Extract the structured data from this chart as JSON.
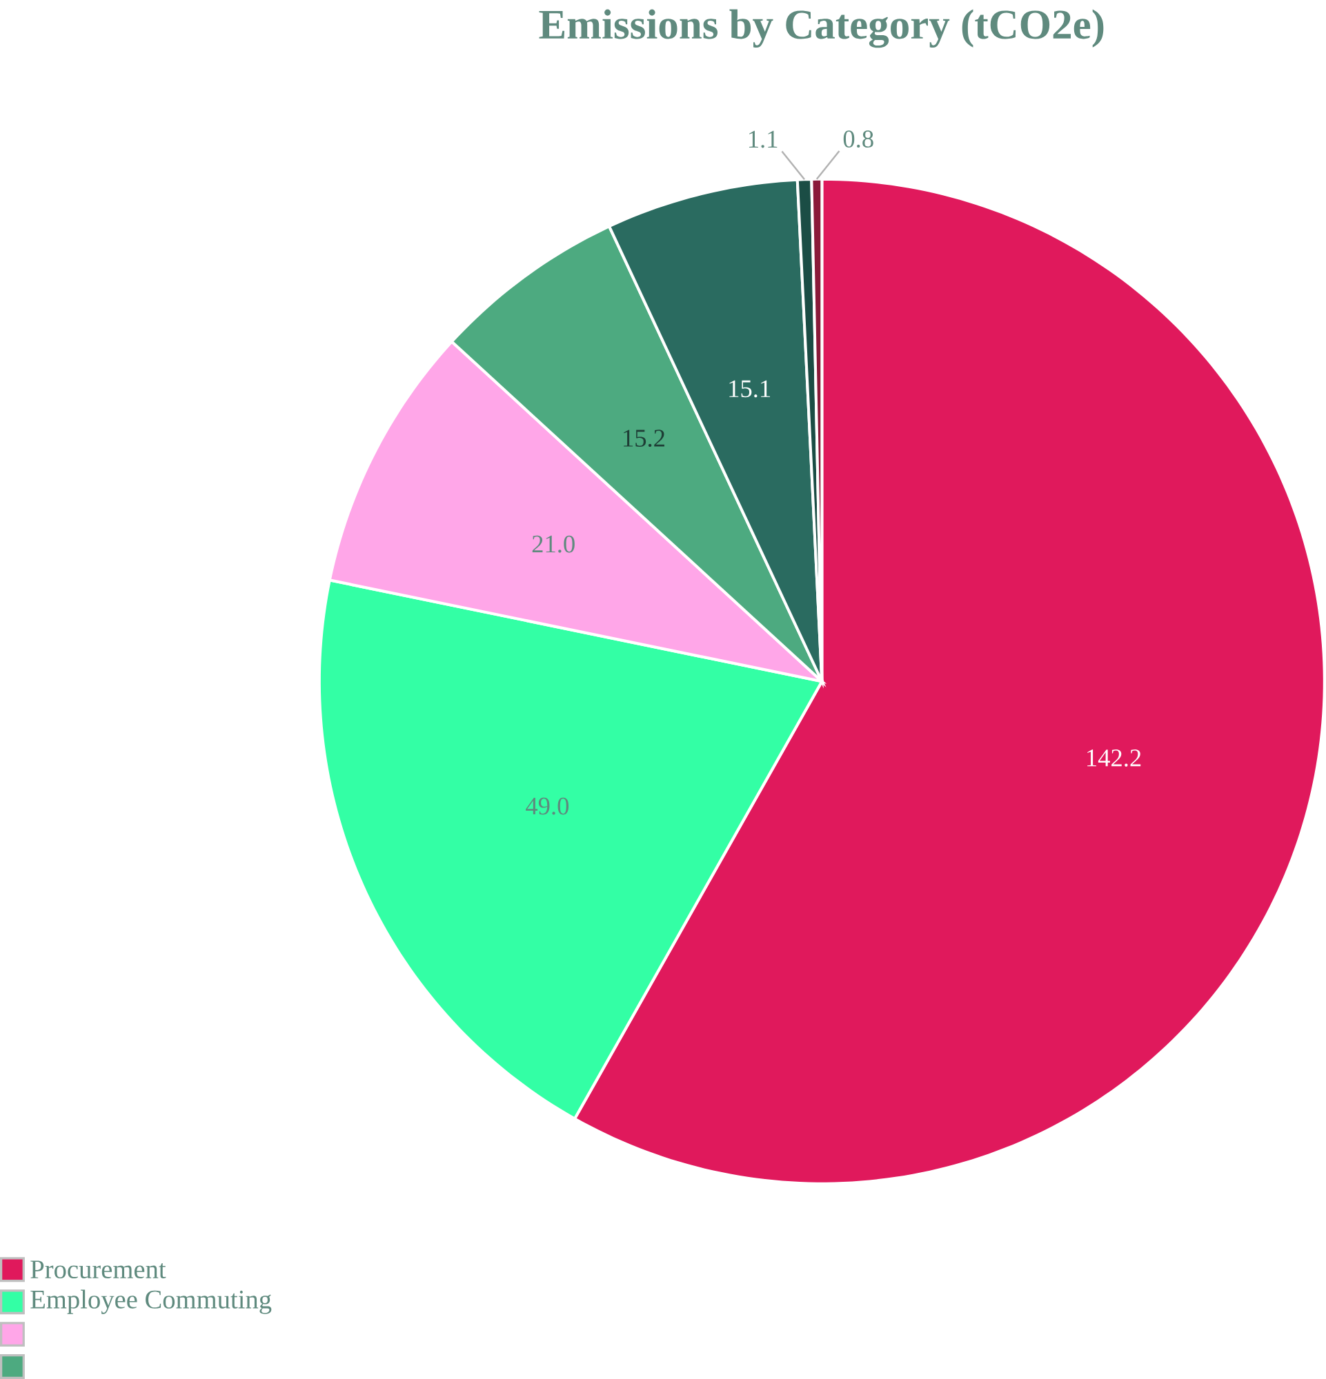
{
  "chart_data": {
    "type": "pie",
    "title": "Emissions by Category (tCO2e)",
    "categories": [
      "Procurement",
      "Employee Commuting",
      null,
      null,
      null,
      null,
      null
    ],
    "values": [
      142.2,
      49.0,
      21.0,
      15.2,
      15.1,
      1.1,
      0.8
    ],
    "value_labels": [
      "142.2",
      "49.0",
      "21.0",
      "15.2",
      "15.1",
      "1.1",
      "0.8"
    ],
    "colors": [
      "#e0195c",
      "#33ffa5",
      "#ffa6e8",
      "#4daa80",
      "#2a6b60",
      "#1b4d45",
      "#8b1a3a"
    ],
    "legend": "bottom left"
  }
}
